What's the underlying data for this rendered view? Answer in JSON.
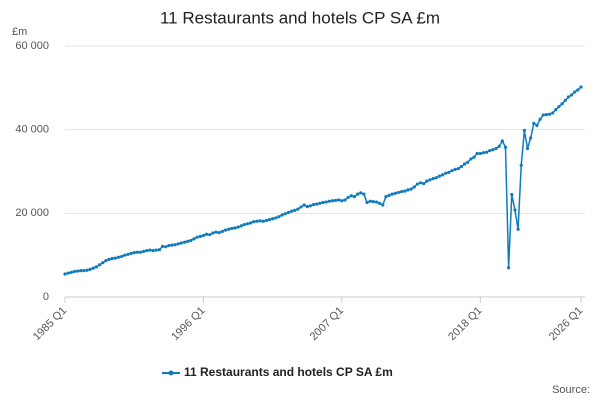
{
  "chart_data": {
    "type": "line",
    "title": "11 Restaurants and hotels CP SA £m",
    "y_label": "£m",
    "source": "Source:",
    "categories": [
      "1985 Q1",
      null,
      null,
      null,
      null,
      null,
      null,
      null,
      null,
      null,
      null,
      null,
      null,
      null,
      null,
      null,
      null,
      null,
      null,
      null,
      null,
      null,
      null,
      null,
      null,
      null,
      null,
      null,
      null,
      null,
      null,
      null,
      null,
      null,
      null,
      null,
      null,
      null,
      null,
      null,
      null,
      null,
      null,
      null,
      "1996 Q1",
      null,
      null,
      null,
      null,
      null,
      null,
      null,
      null,
      null,
      null,
      null,
      null,
      null,
      null,
      null,
      null,
      null,
      null,
      null,
      null,
      null,
      null,
      null,
      null,
      null,
      null,
      null,
      null,
      null,
      null,
      null,
      null,
      null,
      null,
      null,
      null,
      null,
      null,
      null,
      null,
      null,
      null,
      null,
      "2007 Q1",
      null,
      null,
      null,
      null,
      null,
      null,
      null,
      null,
      null,
      null,
      null,
      null,
      null,
      null,
      null,
      null,
      null,
      null,
      null,
      null,
      null,
      null,
      null,
      null,
      null,
      null,
      null,
      null,
      null,
      null,
      null,
      null,
      null,
      null,
      null,
      null,
      null,
      null,
      null,
      null,
      null,
      null,
      null,
      "2018 Q1",
      null,
      null,
      null,
      null,
      null,
      null,
      null,
      null,
      null,
      null,
      null,
      null,
      null,
      null,
      null,
      null,
      null,
      null,
      null,
      null,
      null,
      null,
      null,
      null,
      null,
      null,
      null,
      null,
      null,
      null,
      null,
      "2026 Q1"
    ],
    "series": [
      {
        "name": "11 Restaurants and hotels CP SA £m",
        "color": "#0f7bbd",
        "values": [
          5500,
          5700,
          5900,
          6100,
          6200,
          6300,
          6300,
          6400,
          6600,
          6900,
          7200,
          7700,
          8200,
          8700,
          9000,
          9200,
          9300,
          9500,
          9700,
          10000,
          10200,
          10400,
          10600,
          10700,
          10700,
          10900,
          11100,
          11200,
          11100,
          11200,
          11300,
          12100,
          12000,
          12300,
          12400,
          12500,
          12700,
          12900,
          13100,
          13300,
          13500,
          13900,
          14300,
          14500,
          14700,
          15000,
          14900,
          15300,
          15500,
          15400,
          15700,
          16000,
          16200,
          16400,
          16500,
          16700,
          17000,
          17300,
          17500,
          17700,
          18000,
          18100,
          18200,
          18100,
          18300,
          18500,
          18700,
          18900,
          19200,
          19600,
          19900,
          20200,
          20500,
          20700,
          21000,
          21500,
          22000,
          21600,
          21800,
          22100,
          22200,
          22400,
          22600,
          22700,
          22900,
          23000,
          23100,
          23200,
          23000,
          23200,
          23800,
          24200,
          24000,
          24600,
          24900,
          24600,
          22600,
          22900,
          22800,
          22700,
          22400,
          22000,
          24000,
          24300,
          24600,
          24800,
          25000,
          25200,
          25300,
          25600,
          25800,
          26300,
          27000,
          27300,
          27100,
          27700,
          28000,
          28300,
          28500,
          28900,
          29200,
          29600,
          29800,
          30200,
          30500,
          30700,
          31200,
          31800,
          32200,
          33000,
          33400,
          34300,
          34300,
          34500,
          34600,
          35000,
          35200,
          35500,
          36000,
          37300,
          35800,
          7000,
          24500,
          20800,
          16200,
          31500,
          39800,
          35500,
          38000,
          41500,
          41000,
          42500,
          43500,
          43600,
          43700,
          44000,
          44800,
          45500,
          46200,
          47000,
          47800,
          48300,
          49000,
          49500,
          50200
        ]
      }
    ],
    "ylim": [
      0,
      60000
    ],
    "yticks": [
      0,
      {
        "value": 20000,
        "label": "20 000"
      },
      {
        "value": 40000,
        "label": "40 000"
      },
      {
        "value": 60000,
        "label": "60 000"
      }
    ],
    "grid": true
  }
}
